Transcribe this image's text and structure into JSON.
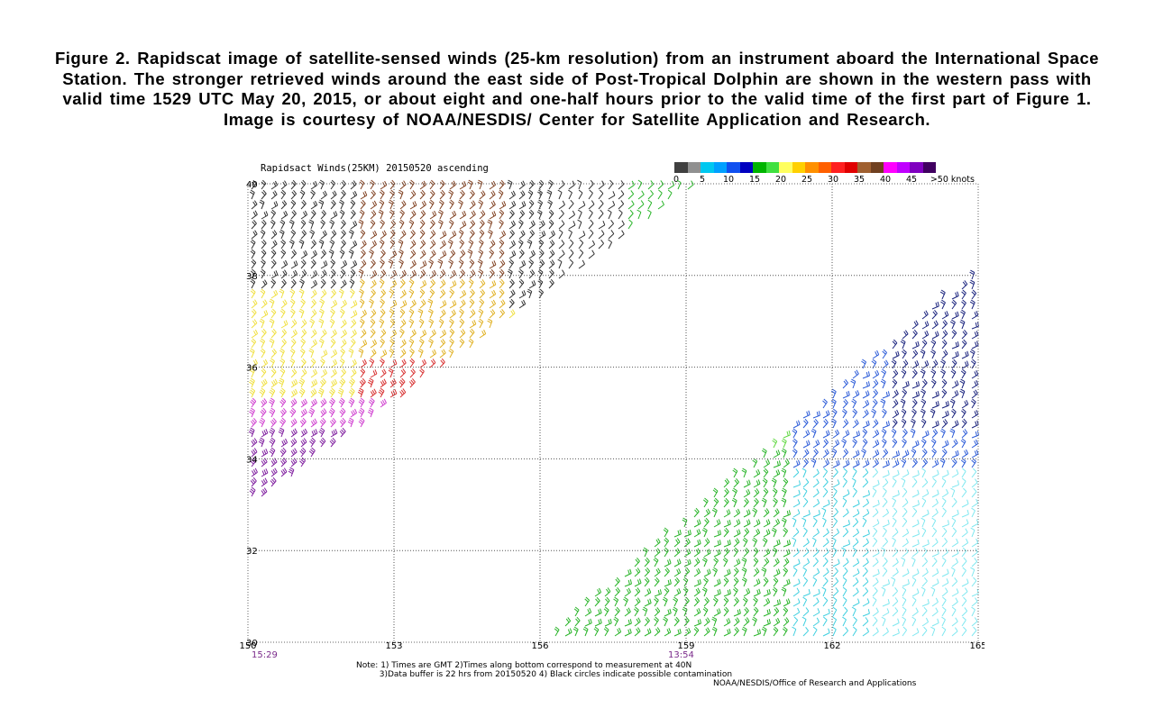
{
  "caption": "Figure 2.  Rapidscat image of satellite-sensed winds (25-km resolution) from an instrument aboard the International Space Station.  The stronger retrieved winds around the east side of Post-Tropical Dolphin are shown in the western pass with valid time 1529 UTC May 20, 2015, or about eight and one-half hours prior to the valid time of the first part of Figure 1.  Image is courtesy of NOAA/NESDIS/ Center for Satellite Application and Research.",
  "map": {
    "title": "Rapidsact Winds(25KM) 20150520 ascending",
    "lon_ticks": [
      "150",
      "153",
      "156",
      "159",
      "162",
      "165"
    ],
    "lat_ticks": [
      "40",
      "38",
      "36",
      "34",
      "32",
      "30"
    ],
    "times": [
      "15:29",
      "13:54"
    ],
    "lon_range": [
      150,
      165
    ],
    "lat_range": [
      30,
      40
    ]
  },
  "colorbar": {
    "labels": [
      "0",
      "5",
      "10",
      "15",
      "20",
      "25",
      "30",
      "35",
      "40",
      "45",
      ">50 knots"
    ],
    "colors": [
      "#404040",
      "#909090",
      "#00c8f0",
      "#00a0ff",
      "#1050f0",
      "#0000c0",
      "#00b400",
      "#40e040",
      "#ffff60",
      "#ffd000",
      "#ff9000",
      "#ff6000",
      "#ff2020",
      "#e00000",
      "#a06030",
      "#704020",
      "#ff00ff",
      "#c000ff",
      "#8000c0",
      "#400060"
    ]
  },
  "notes": {
    "line1": "Note: 1) Times are GMT 2)Times along bottom correspond to measurement at 40N",
    "line2": "         3)Data buffer is 22 hrs from 20150520 4) Black circles indicate possible contamination"
  },
  "credit": "NOAA/NESDIS/Office of Research and Applications"
}
